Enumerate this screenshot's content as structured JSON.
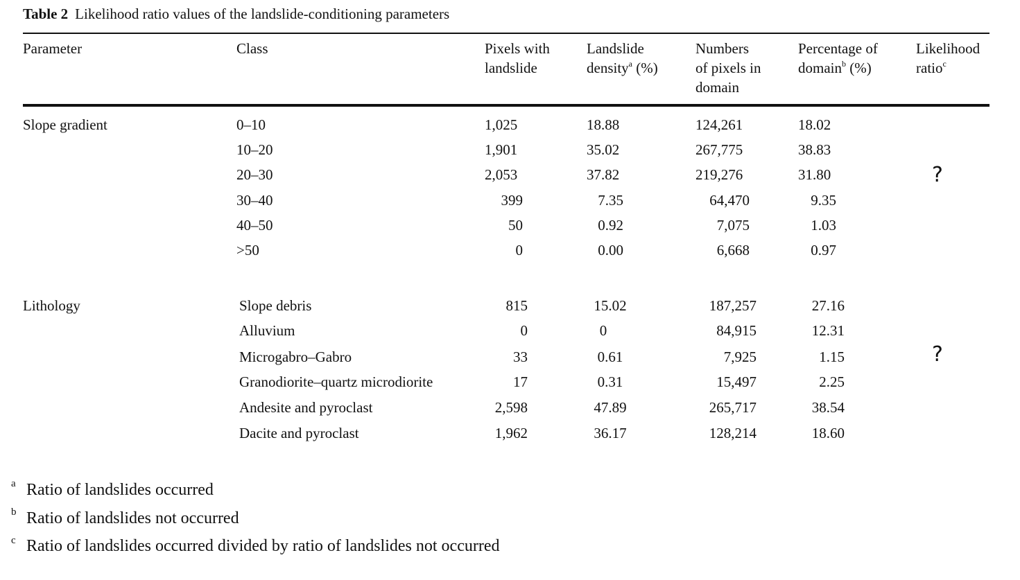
{
  "table": {
    "label": "Table 2",
    "title": "Likelihood ratio values of the landslide-conditioning parameters",
    "headers": {
      "parameter": "Parameter",
      "class": "Class",
      "pixels_with_landslide": [
        "Pixels with",
        "landslide"
      ],
      "landslide_density": [
        "Landslide",
        "density",
        "a",
        " (%)"
      ],
      "numbers_of_pixels": [
        "Numbers",
        "of pixels in",
        "domain"
      ],
      "percentage_of_domain": [
        "Percentage of",
        "domain",
        "b",
        " (%)"
      ],
      "likelihood_ratio": [
        "Likelihood",
        "ratio",
        "c"
      ]
    },
    "groups": [
      {
        "parameter": "Slope gradient",
        "likelihood_ratio": "?",
        "rows": [
          {
            "class": "0–10",
            "pixels": "1,025",
            "density": "18.88",
            "domain_pixels": "124,261",
            "percentage": "18.02"
          },
          {
            "class": "10–20",
            "pixels": "1,901",
            "density": "35.02",
            "domain_pixels": "267,775",
            "percentage": "38.83"
          },
          {
            "class": "20–30",
            "pixels": "2,053",
            "density": "37.82",
            "domain_pixels": "219,276",
            "percentage": "31.80"
          },
          {
            "class": "30–40",
            "pixels": "399",
            "density": "7.35",
            "domain_pixels": "64,470",
            "percentage": "9.35"
          },
          {
            "class": "40–50",
            "pixels": "50",
            "density": "0.92",
            "domain_pixels": "7,075",
            "percentage": "1.03"
          },
          {
            "class": ">50",
            "pixels": "0",
            "density": "0.00",
            "domain_pixels": "6,668",
            "percentage": "0.97"
          }
        ]
      },
      {
        "parameter": "Lithology",
        "likelihood_ratio": "?",
        "rows": [
          {
            "class": "Slope debris",
            "pixels": "815",
            "density": "15.02",
            "domain_pixels": "187,257",
            "percentage": "27.16"
          },
          {
            "class": "Alluvium",
            "pixels": "0",
            "density": "0",
            "domain_pixels": "84,915",
            "percentage": "12.31"
          },
          {
            "class": "Microgabro–Gabro",
            "pixels": "33",
            "density": "0.61",
            "domain_pixels": "7,925",
            "percentage": "1.15"
          },
          {
            "class": "Granodiorite–quartz microdiorite",
            "pixels": "17",
            "density": "0.31",
            "domain_pixels": "15,497",
            "percentage": "2.25"
          },
          {
            "class": "Andesite and pyroclast",
            "pixels": "2,598",
            "density": "47.89",
            "domain_pixels": "265,717",
            "percentage": "38.54"
          },
          {
            "class": "Dacite and pyroclast",
            "pixels": "1,962",
            "density": "36.17",
            "domain_pixels": "128,214",
            "percentage": "18.60"
          }
        ]
      }
    ],
    "footnotes": [
      {
        "mark": "a",
        "text": "Ratio of landslides occurred"
      },
      {
        "mark": "b",
        "text": "Ratio of landslides not occurred"
      },
      {
        "mark": "c",
        "text": "Ratio of landslides occurred divided by ratio of landslides not occurred"
      }
    ]
  }
}
